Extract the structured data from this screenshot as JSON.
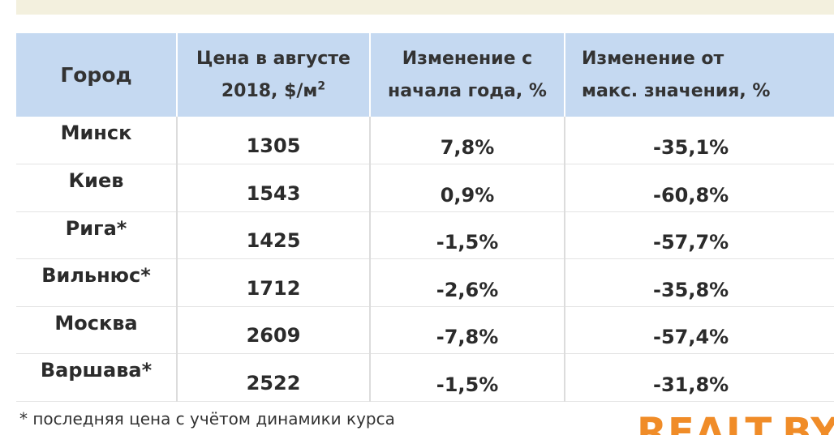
{
  "table": {
    "headers": {
      "city": "Город",
      "price_line1": "Цена в августе",
      "price_line2": "2018, $/м",
      "price_sup": "2",
      "ytd_line1": "Изменение с",
      "ytd_line2": "начала года, %",
      "max_line1": "Изменение от",
      "max_line2": "макс. значения, %"
    },
    "rows": [
      {
        "city": "Минск",
        "price": "1305",
        "ytd": "7,8%",
        "max": "-35,1%"
      },
      {
        "city": "Киев",
        "price": "1543",
        "ytd": "0,9%",
        "max": "-60,8%"
      },
      {
        "city": "Рига*",
        "price": "1425",
        "ytd": "-1,5%",
        "max": "-57,7%"
      },
      {
        "city": "Вильнюс*",
        "price": "1712",
        "ytd": "-2,6%",
        "max": "-35,8%"
      },
      {
        "city": "Москва",
        "price": "2609",
        "ytd": "-7,8%",
        "max": "-57,4%"
      },
      {
        "city": "Варшава*",
        "price": "2522",
        "ytd": "-1,5%",
        "max": "-31,8%"
      }
    ]
  },
  "footnote": "* последняя цена с учётом динамики курса",
  "brand": "REALT.BY",
  "colors": {
    "header_bg": "#c5d9f1",
    "top_band": "#f3f0de",
    "brand": "#f08c28"
  },
  "chart_data": {
    "type": "table",
    "columns": [
      "Город",
      "Цена в августе 2018, $/м2",
      "Изменение с начала года, %",
      "Изменение от макс. значения, %"
    ],
    "rows": [
      [
        "Минск",
        1305,
        7.8,
        -35.1
      ],
      [
        "Киев",
        1543,
        0.9,
        -60.8
      ],
      [
        "Рига*",
        1425,
        -1.5,
        -57.7
      ],
      [
        "Вильнюс*",
        1712,
        -2.6,
        -35.8
      ],
      [
        "Москва",
        2609,
        -7.8,
        -57.4
      ],
      [
        "Варшава*",
        2522,
        -1.5,
        -31.8
      ]
    ]
  }
}
